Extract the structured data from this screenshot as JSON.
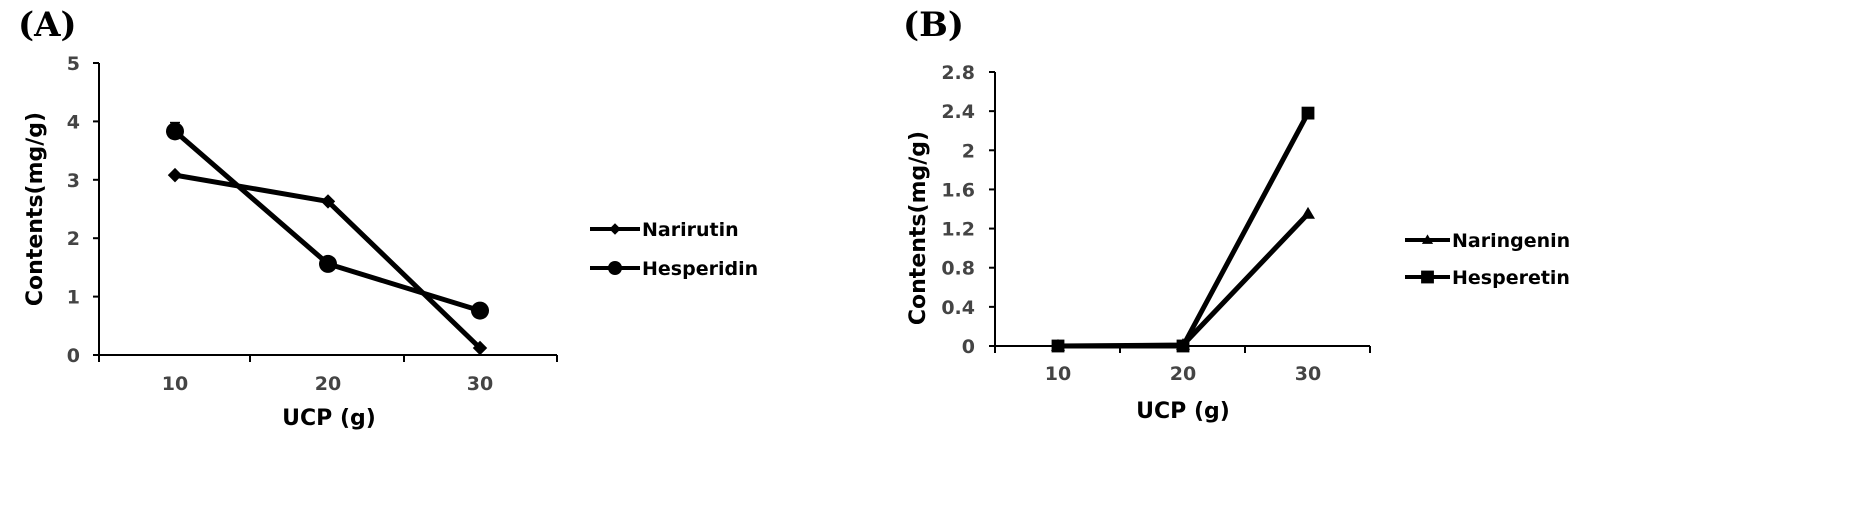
{
  "chart_data": [
    {
      "type": "line",
      "panel_label": "(A)",
      "xlabel": "UCP (g)",
      "ylabel": "Contents(mg/g)",
      "categories": [
        "10",
        "20",
        "30"
      ],
      "ylim": [
        0,
        5
      ],
      "yticks": [
        "0",
        "1",
        "2",
        "3",
        "4",
        "5"
      ],
      "legend_position": "right",
      "series": [
        {
          "name": "Narirutin",
          "marker": "diamond",
          "values": [
            3.08,
            2.63,
            0.12
          ]
        },
        {
          "name": "Hesperidin",
          "marker": "circle",
          "values": [
            3.83,
            1.56,
            0.76
          ],
          "error": [
            0.15,
            0.03,
            0.03
          ]
        }
      ]
    },
    {
      "type": "line",
      "panel_label": "(B)",
      "xlabel": "UCP (g)",
      "ylabel": "Contents(mg/g)",
      "categories": [
        "10",
        "20",
        "30"
      ],
      "ylim": [
        0,
        2.8
      ],
      "yticks": [
        "0",
        "0.4",
        "0.8",
        "1.2",
        "1.6",
        "2",
        "2.4",
        "2.8"
      ],
      "legend_position": "right",
      "series": [
        {
          "name": "Naringenin",
          "marker": "triangle",
          "values": [
            0,
            0.01,
            1.35
          ]
        },
        {
          "name": "Hesperetin",
          "marker": "square",
          "values": [
            0,
            0,
            2.38
          ]
        }
      ]
    }
  ]
}
